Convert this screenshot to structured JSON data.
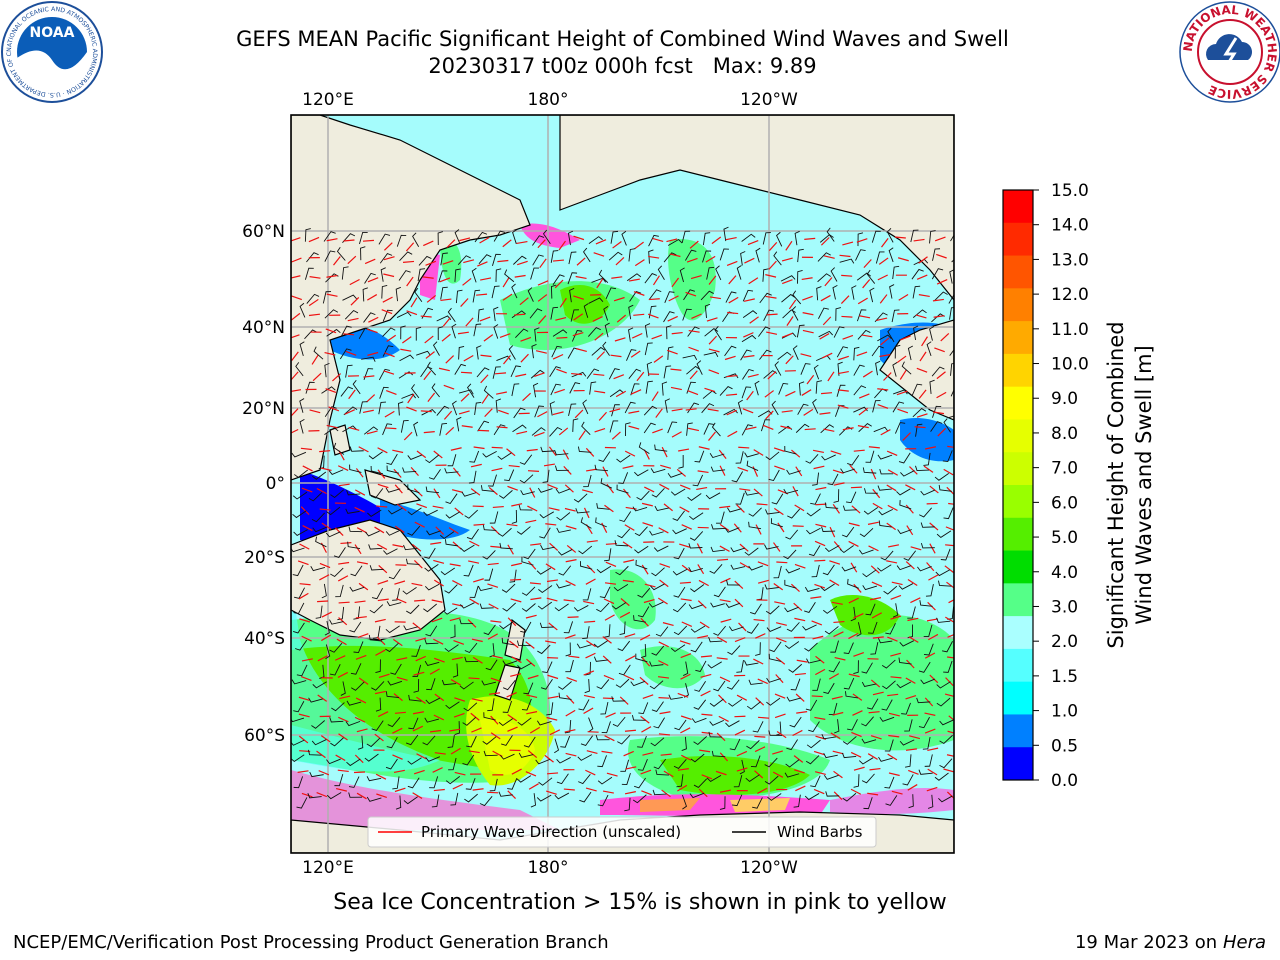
{
  "title": {
    "line1": "GEFS MEAN Pacific Significant Height of Combined Wind Waves and Swell",
    "line2": "20230317 t00z 000h fcst   Max: 9.89"
  },
  "map": {
    "top_lon_labels": [
      "120°E",
      "180°",
      "120°W"
    ],
    "bottom_lon_labels": [
      "120°E",
      "180°",
      "120°W"
    ],
    "lat_labels": [
      "60°N",
      "40°N",
      "20°N",
      "0°",
      "20°S",
      "40°S",
      "60°S"
    ],
    "legend": {
      "wave_direction": "Primary Wave Direction (unscaled)",
      "wind_barbs": "Wind Barbs"
    },
    "land_color": "#efedde",
    "ocean_color": "#a5fcfc"
  },
  "colorbar": {
    "label_line1": "Significant Height of Combined",
    "label_line2": "Wind Waves and Swell [m]",
    "ticks": [
      "15.0",
      "14.0",
      "13.0",
      "12.0",
      "11.0",
      "10.0",
      "9.0",
      "8.0",
      "7.0",
      "6.0",
      "5.0",
      "4.0",
      "3.0",
      "2.0",
      "1.5",
      "1.0",
      "0.5",
      "0.0"
    ],
    "colors_top_to_bottom": [
      "#ff0000",
      "#ff2a00",
      "#ff5500",
      "#ff8000",
      "#ffaa00",
      "#ffd400",
      "#ffff00",
      "#e6ff00",
      "#ccff00",
      "#99ff00",
      "#55ee00",
      "#00dd00",
      "#55ff88",
      "#aaffff",
      "#55ffff",
      "#00ffff",
      "#0080ff",
      "#0000ff"
    ]
  },
  "caption": "Sea Ice Concentration > 15% is shown in pink to yellow",
  "footer": {
    "left": "NCEP/EMC/Verification Post Processing Product Generation Branch",
    "right_date": "19 Mar 2023 on",
    "right_host": "Hera"
  },
  "logos": {
    "noaa_text": "NOAA",
    "noaa_ring": "NATIONAL OCEANIC AND ATMOSPHERIC ADMINISTRATION · U.S. DEPARTMENT OF COMMERCE",
    "nws_ring": "NATIONAL WEATHER SERVICE"
  }
}
